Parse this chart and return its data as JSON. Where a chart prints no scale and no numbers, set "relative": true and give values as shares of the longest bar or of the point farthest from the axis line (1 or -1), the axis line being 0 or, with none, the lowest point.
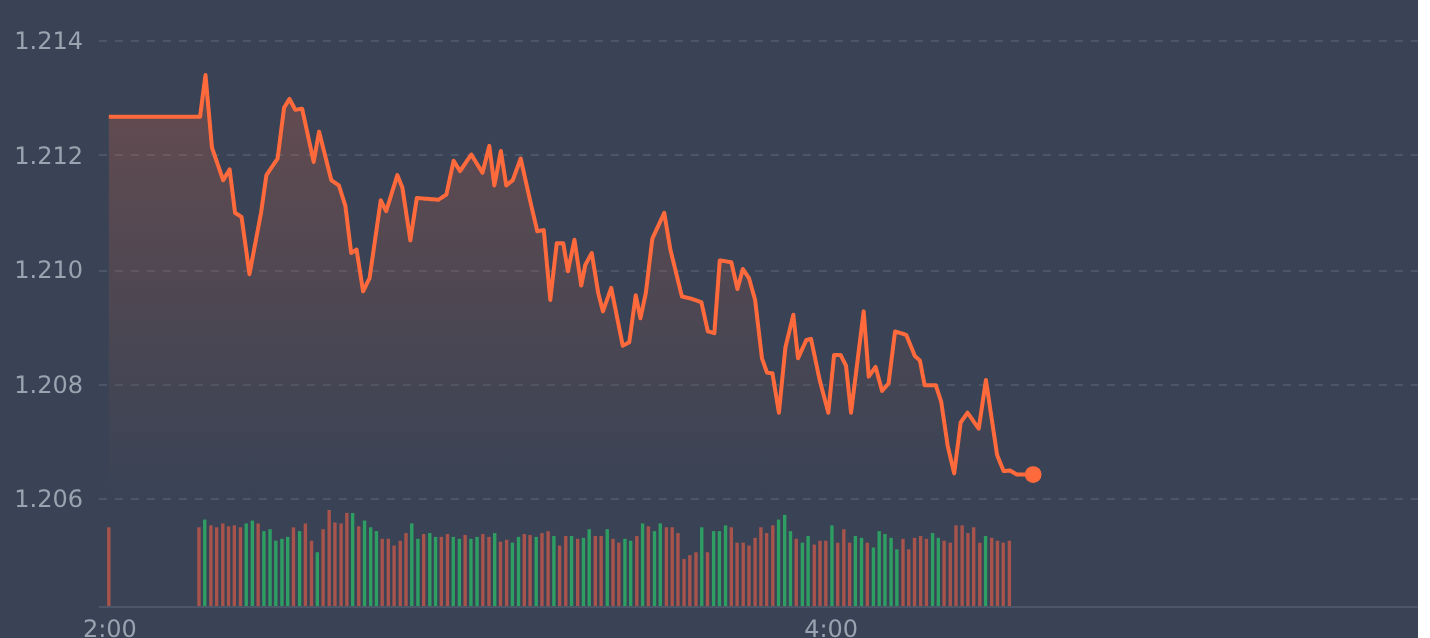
{
  "chart_data": [
    {
      "type": "area",
      "xlim": [
        1.97,
        5.63
      ],
      "ylim": [
        1.206,
        1.214
      ],
      "yticks": [
        {
          "value": 1.206,
          "label": "1.206"
        },
        {
          "value": 1.208,
          "label": "1.208"
        },
        {
          "value": 1.21,
          "label": "1.210"
        },
        {
          "value": 1.212,
          "label": "1.212"
        },
        {
          "value": 1.214,
          "label": "1.214"
        }
      ],
      "grid": "y",
      "tick_labels": "y",
      "line_style": "solid",
      "series": [
        {
          "type": "area",
          "color": "#ff6a3d",
          "x": [
            2.0,
            2.253,
            2.268,
            2.286,
            2.317,
            2.335,
            2.35,
            2.368,
            2.39,
            2.422,
            2.437,
            2.468,
            2.486,
            2.501,
            2.517,
            2.536,
            2.568,
            2.583,
            2.617,
            2.638,
            2.656,
            2.672,
            2.687,
            2.705,
            2.723,
            2.754,
            2.769,
            2.8,
            2.814,
            2.836,
            2.854,
            2.914,
            2.936,
            2.956,
            2.974,
            3.005,
            3.036,
            3.055,
            3.069,
            3.087,
            3.102,
            3.12,
            3.142,
            3.169,
            3.188,
            3.206,
            3.224,
            3.242,
            3.26,
            3.273,
            3.291,
            3.31,
            3.321,
            3.339,
            3.357,
            3.37,
            3.393,
            3.425,
            3.443,
            3.461,
            3.474,
            3.489,
            3.507,
            3.54,
            3.557,
            3.589,
            3.616,
            3.643,
            3.661,
            3.679,
            3.694,
            3.726,
            3.743,
            3.758,
            3.775,
            3.792,
            3.811,
            3.825,
            3.84,
            3.858,
            3.876,
            3.898,
            3.911,
            3.934,
            3.947,
            3.971,
            3.995,
            4.011,
            4.029,
            4.044,
            4.058,
            4.093,
            4.107,
            4.126,
            4.144,
            4.162,
            4.18,
            4.211,
            4.235,
            4.249,
            4.262,
            4.293,
            4.308,
            4.326,
            4.344,
            4.362,
            4.381,
            4.412,
            4.432,
            4.463,
            4.481,
            4.499,
            4.518,
            4.563
          ],
          "values": [
            1.21266,
            1.21266,
            1.21339,
            1.21212,
            1.21155,
            1.21174,
            1.21098,
            1.21091,
            1.20991,
            1.21098,
            1.21164,
            1.21193,
            1.21282,
            1.21297,
            1.21278,
            1.2128,
            1.21187,
            1.2124,
            1.21155,
            1.21146,
            1.2111,
            1.21028,
            1.21034,
            1.20961,
            1.20984,
            1.2112,
            1.21101,
            1.21164,
            1.21142,
            1.2105,
            1.21124,
            1.21121,
            1.2113,
            1.21189,
            1.21171,
            1.212,
            1.21168,
            1.21215,
            1.21146,
            1.21206,
            1.21146,
            1.21155,
            1.21193,
            1.21117,
            1.21066,
            1.21068,
            1.20946,
            1.21045,
            1.21045,
            1.20996,
            1.21051,
            1.20971,
            1.21007,
            1.21028,
            1.20958,
            1.20926,
            1.20967,
            1.20866,
            1.20872,
            1.20954,
            1.20914,
            1.20958,
            1.21053,
            1.21098,
            1.21034,
            1.20952,
            1.20948,
            1.20942,
            1.20891,
            1.20888,
            1.21015,
            1.21012,
            1.20965,
            1.21,
            1.20984,
            1.20946,
            1.20844,
            1.20819,
            1.20818,
            1.20749,
            1.20863,
            1.2092,
            1.20844,
            1.20876,
            1.20878,
            1.20806,
            1.20749,
            1.2085,
            1.2085,
            1.20831,
            1.20749,
            1.20926,
            1.20812,
            1.20829,
            1.20787,
            1.208,
            1.20891,
            1.20885,
            1.20848,
            1.2084,
            1.20797,
            1.20797,
            1.20768,
            1.20691,
            1.20643,
            1.20732,
            1.20749,
            1.20721,
            1.20806,
            1.20675,
            1.20647,
            1.20648,
            1.20641,
            1.20641
          ]
        },
        {
          "type": "scatter",
          "marker": "circle",
          "color": "#ff6a3d",
          "x": [
            4.563
          ],
          "values": [
            1.20641
          ]
        }
      ]
    },
    {
      "type": "bar",
      "relative": true,
      "xlim": [
        1.97,
        5.63
      ],
      "xticks": [
        {
          "value": 2,
          "label": "2:00"
        },
        {
          "value": 4,
          "label": "4:00"
        }
      ],
      "tick_labels": "x",
      "x": [
        2.0,
        2.25,
        2.266,
        2.283,
        2.299,
        2.316,
        2.332,
        2.348,
        2.365,
        2.381,
        2.398,
        2.414,
        2.43,
        2.447,
        2.463,
        2.48,
        2.496,
        2.512,
        2.529,
        2.545,
        2.562,
        2.578,
        2.594,
        2.611,
        2.627,
        2.644,
        2.66,
        2.676,
        2.693,
        2.709,
        2.726,
        2.742,
        2.758,
        2.775,
        2.791,
        2.808,
        2.824,
        2.84,
        2.857,
        2.873,
        2.89,
        2.906,
        2.922,
        2.939,
        2.955,
        2.972,
        2.988,
        3.004,
        3.021,
        3.037,
        3.054,
        3.07,
        3.086,
        3.103,
        3.119,
        3.136,
        3.152,
        3.168,
        3.185,
        3.201,
        3.218,
        3.234,
        3.25,
        3.267,
        3.283,
        3.3,
        3.316,
        3.332,
        3.349,
        3.365,
        3.382,
        3.398,
        3.414,
        3.431,
        3.447,
        3.464,
        3.48,
        3.496,
        3.513,
        3.529,
        3.546,
        3.562,
        3.578,
        3.595,
        3.611,
        3.628,
        3.644,
        3.66,
        3.677,
        3.693,
        3.71,
        3.726,
        3.742,
        3.759,
        3.775,
        3.792,
        3.808,
        3.824,
        3.841,
        3.857,
        3.874,
        3.89,
        3.906,
        3.923,
        3.939,
        3.956,
        3.972,
        3.988,
        4.005,
        4.021,
        4.038,
        4.054,
        4.07,
        4.087,
        4.103,
        4.12,
        4.136,
        4.152,
        4.169,
        4.185,
        4.202,
        4.218,
        4.234,
        4.251,
        4.267,
        4.284,
        4.3,
        4.316,
        4.333,
        4.349,
        4.366,
        4.382,
        4.398,
        4.415,
        4.431,
        4.448,
        4.464,
        4.48,
        4.497
      ],
      "values": [
        0.82,
        0.82,
        0.9,
        0.84,
        0.82,
        0.86,
        0.83,
        0.84,
        0.82,
        0.86,
        0.89,
        0.86,
        0.78,
        0.8,
        0.68,
        0.7,
        0.72,
        0.82,
        0.78,
        0.86,
        0.68,
        0.56,
        0.8,
        1.0,
        0.87,
        0.86,
        0.97,
        0.97,
        0.83,
        0.89,
        0.82,
        0.78,
        0.7,
        0.7,
        0.63,
        0.68,
        0.76,
        0.86,
        0.7,
        0.75,
        0.76,
        0.72,
        0.72,
        0.75,
        0.72,
        0.7,
        0.74,
        0.7,
        0.72,
        0.75,
        0.72,
        0.76,
        0.67,
        0.69,
        0.66,
        0.72,
        0.75,
        0.74,
        0.72,
        0.76,
        0.78,
        0.73,
        0.63,
        0.73,
        0.73,
        0.7,
        0.71,
        0.8,
        0.73,
        0.73,
        0.8,
        0.7,
        0.66,
        0.7,
        0.68,
        0.73,
        0.86,
        0.83,
        0.78,
        0.86,
        0.82,
        0.82,
        0.76,
        0.49,
        0.53,
        0.56,
        0.82,
        0.56,
        0.78,
        0.78,
        0.84,
        0.82,
        0.66,
        0.66,
        0.63,
        0.71,
        0.82,
        0.76,
        0.84,
        0.9,
        0.95,
        0.78,
        0.7,
        0.66,
        0.73,
        0.64,
        0.68,
        0.68,
        0.84,
        0.66,
        0.8,
        0.66,
        0.73,
        0.71,
        0.66,
        0.61,
        0.78,
        0.75,
        0.71,
        0.59,
        0.7,
        0.59,
        0.71,
        0.73,
        0.7,
        0.76,
        0.71,
        0.68,
        0.66,
        0.84,
        0.84,
        0.76,
        0.82,
        0.66,
        0.73,
        0.71,
        0.68,
        0.66,
        0.68
      ],
      "colors": [
        "#a8544c",
        "#a8544c",
        "#2e9e63",
        "#a8544c",
        "#a8544c",
        "#a8544c",
        "#a8544c",
        "#a8544c",
        "#a8544c",
        "#2e9e63",
        "#2e9e63",
        "#a8544c",
        "#2e9e63",
        "#2e9e63",
        "#2e9e63",
        "#2e9e63",
        "#2e9e63",
        "#a8544c",
        "#2e9e63",
        "#a8544c",
        "#a8544c",
        "#2e9e63",
        "#a8544c",
        "#a8544c",
        "#a8544c",
        "#a8544c",
        "#a8544c",
        "#2e9e63",
        "#a8544c",
        "#2e9e63",
        "#2e9e63",
        "#2e9e63",
        "#a8544c",
        "#a8544c",
        "#a8544c",
        "#a8544c",
        "#a8544c",
        "#2e9e63",
        "#2e9e63",
        "#a8544c",
        "#2e9e63",
        "#2e9e63",
        "#a8544c",
        "#a8544c",
        "#2e9e63",
        "#2e9e63",
        "#a8544c",
        "#2e9e63",
        "#2e9e63",
        "#a8544c",
        "#a8544c",
        "#2e9e63",
        "#a8544c",
        "#a8544c",
        "#2e9e63",
        "#2e9e63",
        "#a8544c",
        "#a8544c",
        "#2e9e63",
        "#a8544c",
        "#a8544c",
        "#2e9e63",
        "#a8544c",
        "#a8544c",
        "#2e9e63",
        "#a8544c",
        "#2e9e63",
        "#2e9e63",
        "#a8544c",
        "#a8544c",
        "#2e9e63",
        "#a8544c",
        "#a8544c",
        "#2e9e63",
        "#2e9e63",
        "#a8544c",
        "#2e9e63",
        "#a8544c",
        "#2e9e63",
        "#2e9e63",
        "#a8544c",
        "#a8544c",
        "#a8544c",
        "#a8544c",
        "#a8544c",
        "#a8544c",
        "#2e9e63",
        "#a8544c",
        "#2e9e63",
        "#2e9e63",
        "#2e9e63",
        "#a8544c",
        "#a8544c",
        "#a8544c",
        "#a8544c",
        "#a8544c",
        "#a8544c",
        "#a8544c",
        "#a8544c",
        "#2e9e63",
        "#2e9e63",
        "#2e9e63",
        "#a8544c",
        "#2e9e63",
        "#2e9e63",
        "#a8544c",
        "#a8544c",
        "#a8544c",
        "#2e9e63",
        "#a8544c",
        "#a8544c",
        "#a8544c",
        "#2e9e63",
        "#2e9e63",
        "#a8544c",
        "#2e9e63",
        "#2e9e63",
        "#2e9e63",
        "#2e9e63",
        "#2e9e63",
        "#a8544c",
        "#a8544c",
        "#a8544c",
        "#a8544c",
        "#a8544c",
        "#2e9e63",
        "#2e9e63",
        "#a8544c",
        "#a8544c",
        "#a8544c",
        "#a8544c",
        "#a8544c",
        "#a8544c",
        "#a8544c",
        "#2e9e63",
        "#a8544c",
        "#a8544c",
        "#a8544c",
        "#a8544c"
      ]
    }
  ]
}
